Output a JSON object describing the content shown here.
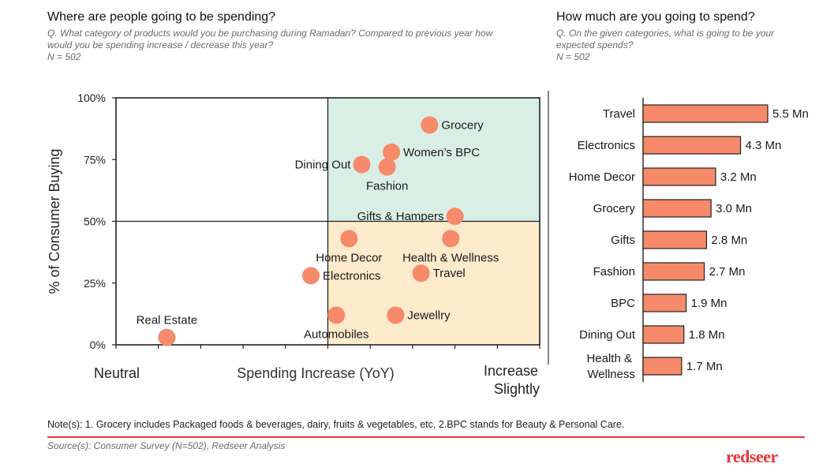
{
  "left_panel": {
    "title": "Where are people going to be spending?",
    "question_line1": "Q. What category of products would you be purchasing during Ramadan? Compared to previous year how",
    "question_line2": "would you be spending increase / decrease this year?",
    "sample": "N = 502"
  },
  "right_panel": {
    "title": "How much are you going to spend?",
    "question_line1": "Q. On the given categories, what is going to be your",
    "question_line2": "expected spends?",
    "sample": "N = 502"
  },
  "colors": {
    "marker": "#f78a6a",
    "bar": "#f78a6a",
    "upper_quadrant": "#d9efe6",
    "lower_quadrant": "#fdebcc",
    "brand": "#e8363b",
    "axis": "#222222"
  },
  "chart_data": [
    {
      "type": "scatter",
      "title": "Where are people going to be spending?",
      "xlabel": "Spending Increase (YoY)",
      "ylabel": "% of Consumer Buying",
      "x_left_label": "Neutral",
      "x_right_label_line1": "Increase",
      "x_right_label_line2": "Slightly",
      "x_scale": "relative 0-10 (Neutral to Increase Slightly), quadrant split at 5",
      "xlim": [
        0,
        10
      ],
      "ylim": [
        0,
        100
      ],
      "y_ticks": [
        0,
        25,
        50,
        75,
        100
      ],
      "y_tick_labels": [
        "0%",
        "25%",
        "50%",
        "75%",
        "100%"
      ],
      "x_ticks": [
        0,
        1,
        2,
        3,
        4,
        5,
        6,
        7,
        8,
        9,
        10
      ],
      "quadrant_x_split": 5,
      "quadrant_y_split": 50,
      "points": [
        {
          "label": "Grocery",
          "x": 7.4,
          "y": 89,
          "label_pos": "right"
        },
        {
          "label": "Women’s BPC",
          "x": 6.5,
          "y": 78,
          "label_pos": "right"
        },
        {
          "label": "Dining Out",
          "x": 5.8,
          "y": 73,
          "label_pos": "left"
        },
        {
          "label": "Fashion",
          "x": 6.4,
          "y": 72,
          "label_pos": "below"
        },
        {
          "label": "Gifts & Hampers",
          "x": 8.0,
          "y": 52,
          "label_pos": "left"
        },
        {
          "label": "Home Decor",
          "x": 5.5,
          "y": 43,
          "label_pos": "below"
        },
        {
          "label": "Health & Wellness",
          "x": 7.9,
          "y": 43,
          "label_pos": "below"
        },
        {
          "label": "Electronics",
          "x": 4.6,
          "y": 28,
          "label_pos": "right"
        },
        {
          "label": "Travel",
          "x": 7.2,
          "y": 29,
          "label_pos": "right"
        },
        {
          "label": "Automobiles",
          "x": 5.2,
          "y": 12,
          "label_pos": "below"
        },
        {
          "label": "Jewellry",
          "x": 6.6,
          "y": 12,
          "label_pos": "right"
        },
        {
          "label": "Real Estate",
          "x": 1.2,
          "y": 3,
          "label_pos": "above"
        }
      ]
    },
    {
      "type": "bar",
      "orientation": "horizontal",
      "title": "How much are you going to spend?",
      "unit": "Mn",
      "categories": [
        "Travel",
        "Electronics",
        "Home Decor",
        "Grocery",
        "Gifts",
        "Fashion",
        "BPC",
        "Dining Out",
        "Health & Wellness"
      ],
      "category_lines": [
        [
          "Travel"
        ],
        [
          "Electronics"
        ],
        [
          "Home Decor"
        ],
        [
          "Grocery"
        ],
        [
          "Gifts"
        ],
        [
          "Fashion"
        ],
        [
          "BPC"
        ],
        [
          "Dining Out"
        ],
        [
          "Health &",
          "Wellness"
        ]
      ],
      "values": [
        5.5,
        4.3,
        3.2,
        3.0,
        2.8,
        2.7,
        1.9,
        1.8,
        1.7
      ],
      "value_labels": [
        "5.5 Mn",
        "4.3 Mn",
        "3.2 Mn",
        "3.0 Mn",
        "2.8 Mn",
        "2.7 Mn",
        "1.9 Mn",
        "1.8 Mn",
        "1.7 Mn"
      ],
      "xlim": [
        0,
        5.5
      ]
    }
  ],
  "footer": {
    "note": "Note(s): 1. Grocery includes Packaged foods & beverages, dairy, fruits & vegetables, etc, 2.BPC stands for Beauty & Personal Care.",
    "source": "Source(s): Consumer Survey (N=502),  Redseer Analysis",
    "brand": "redseer"
  }
}
